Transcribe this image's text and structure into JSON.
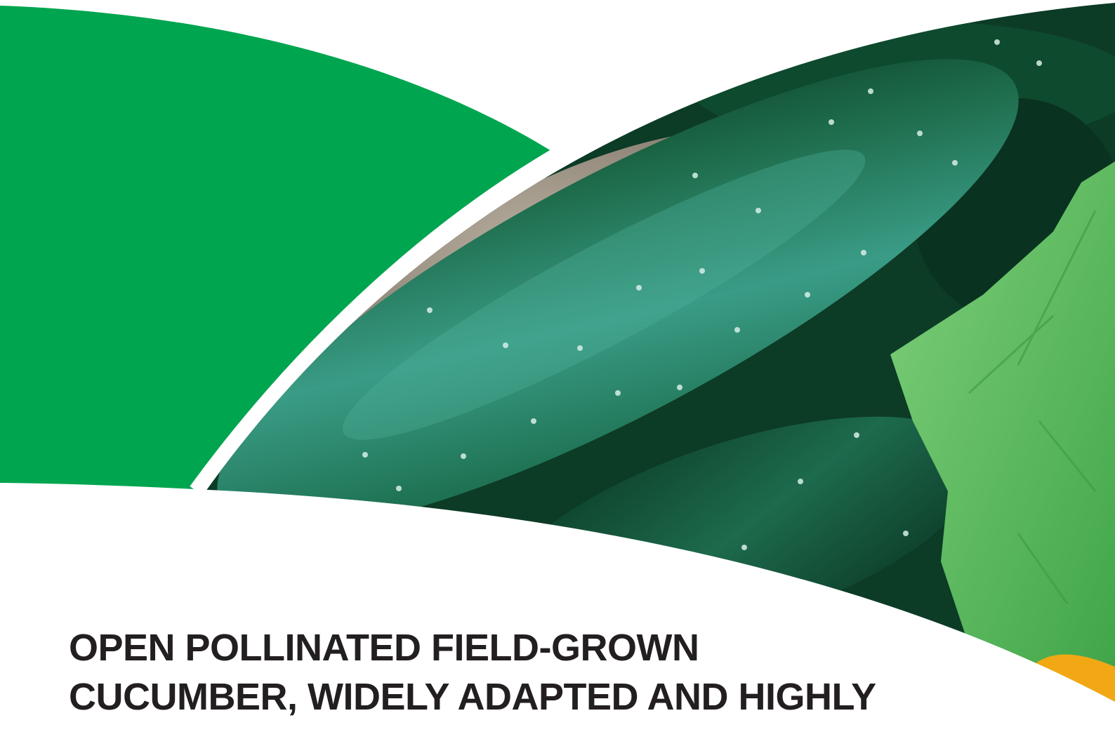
{
  "headline": {
    "line1": "OPEN POLLINATED FIELD-GROWN",
    "line2": "CUCUMBER, WIDELY ADAPTED AND HIGHLY"
  },
  "colors": {
    "brand_green": "#00a54f",
    "headline_text": "#231f20",
    "cucumber_dark": "#0d4a2e",
    "cucumber_highlight": "#3c9e86",
    "leaf_green": "#5fbf5a",
    "soil": "#a39a8c",
    "flower_orange": "#f2a814"
  },
  "image": {
    "subject": "cucumber-photo"
  }
}
